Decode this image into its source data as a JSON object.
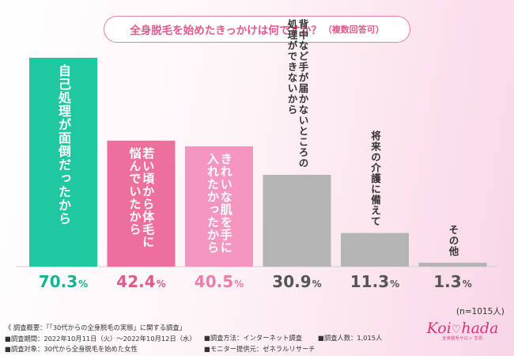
{
  "title": {
    "main": "全身脱毛を始めたきっかけは何ですか？",
    "sub": "（複数回答可）"
  },
  "chart_data": {
    "type": "bar",
    "title": "全身脱毛を始めたきっかけは何ですか？（複数回答可）",
    "categories": [
      "自己処理が面倒だったから",
      "若い頃から体毛に悩んでいたから",
      "きれいな肌を手に入れたかったから",
      "背中など手が届かないところの処理ができないから",
      "将来の介護に備えて",
      "その他"
    ],
    "label_lines": [
      [
        "自己処理が面倒だったから"
      ],
      [
        "若い頃から体毛に",
        "悩んでいたから"
      ],
      [
        "きれいな肌を手に",
        "入れたかったから"
      ],
      [
        "背中など手が届かないところの",
        "処理ができないから"
      ],
      [
        "将来の介護に備えて"
      ],
      [
        "その他"
      ]
    ],
    "values": [
      70.3,
      42.4,
      40.5,
      30.9,
      11.3,
      1.3
    ],
    "value_labels": [
      "70.3",
      "42.4",
      "40.5",
      "30.9",
      "11.3",
      "1.3"
    ],
    "unit": "%",
    "ylim": [
      0,
      100
    ],
    "colors": [
      "#1fc8a0",
      "#ec6f9d",
      "#f596c0",
      "#b4b4b4",
      "#b4b4b4",
      "#b4b4b4"
    ],
    "value_colors": [
      "#12b58c",
      "#e2578c",
      "#ef7dac",
      "#555555",
      "#555555",
      "#555555"
    ],
    "label_colors": [
      "#ffffff",
      "#ffffff",
      "#ffffff",
      "#333333",
      "#333333",
      "#333333"
    ],
    "n_note": "(n=1015人)"
  },
  "footer": {
    "overview": "《 調査概要：「「30代からの全身脱毛の実態」に関する調査」",
    "period": "■調査期間：2022年10月11日（火）～2022年10月12日（水）",
    "target": "■調査対象：30代から全身脱毛を始めた女性",
    "method": "■調査方法：インターネット調査",
    "provider": "■モニター提供元：ゼネラルリサーチ",
    "count": "■調査人数：1,015人"
  },
  "logo": {
    "text_left": "Koi",
    "text_right": "hada",
    "tagline": "全身脱毛サロン 恋肌"
  }
}
